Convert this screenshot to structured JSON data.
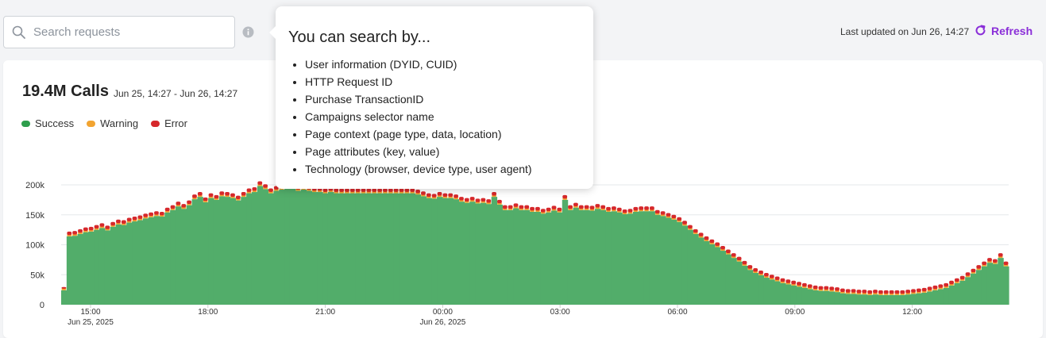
{
  "search": {
    "placeholder": "Search requests",
    "value": ""
  },
  "last_updated": "Last updated on Jun 26, 14:27",
  "refresh_label": "Refresh",
  "summary": {
    "calls": "19.4M Calls",
    "range": "Jun 25, 14:27 - Jun 26, 14:27"
  },
  "legend": [
    {
      "label": "Success",
      "color": "#2e9e4c"
    },
    {
      "label": "Warning",
      "color": "#f2a431"
    },
    {
      "label": "Error",
      "color": "#d6282b"
    }
  ],
  "popover": {
    "title": "You can search by...",
    "items": [
      "User information (DYID, CUID)",
      "HTTP Request ID",
      "Purchase TransactionID",
      "Campaigns selector name",
      "Page context (page type, data, location)",
      "Page attributes (key, value)",
      "Technology (browser, device type, user agent)"
    ]
  },
  "colors": {
    "accent": "#8a2ed8",
    "success_fill": "#52ad6a",
    "warning": "#f2a431",
    "error": "#d6282b"
  },
  "chart_data": {
    "type": "area",
    "y_ticks": [
      "0",
      "50k",
      "100k",
      "150k",
      "200k"
    ],
    "ylim": [
      0,
      200000
    ],
    "x_ticks": [
      {
        "time": "15:00",
        "date": "Jun 25, 2025"
      },
      {
        "time": "18:00",
        "date": ""
      },
      {
        "time": "21:00",
        "date": ""
      },
      {
        "time": "00:00",
        "date": "Jun 26, 2025"
      },
      {
        "time": "03:00",
        "date": ""
      },
      {
        "time": "06:00",
        "date": ""
      },
      {
        "time": "09:00",
        "date": ""
      },
      {
        "time": "12:00",
        "date": ""
      }
    ],
    "interval_minutes": 15,
    "series_names": [
      "Success",
      "Warning",
      "Error"
    ],
    "success": [
      24000,
      114000,
      115000,
      118000,
      121000,
      122000,
      125000,
      128000,
      124000,
      130000,
      134000,
      133000,
      137000,
      139000,
      141000,
      144000,
      146000,
      148000,
      147000,
      154000,
      158000,
      164000,
      160000,
      166000,
      176000,
      180000,
      171000,
      178000,
      175000,
      181000,
      180000,
      178000,
      174000,
      180000,
      186000,
      188000,
      198000,
      193000,
      186000,
      190000,
      192000,
      194000,
      194000,
      190000,
      192000,
      190000,
      188000,
      188000,
      186000,
      188000,
      186000,
      186000,
      186000,
      186000,
      186000,
      186000,
      186000,
      186000,
      186000,
      186000,
      186000,
      186000,
      186000,
      186000,
      186000,
      184000,
      181000,
      178000,
      177000,
      180000,
      178000,
      178000,
      176000,
      172000,
      170000,
      172000,
      169000,
      170000,
      168000,
      180000,
      167000,
      158000,
      158000,
      161000,
      158000,
      158000,
      155000,
      155000,
      152000,
      154000,
      157000,
      154000,
      175000,
      158000,
      162000,
      158000,
      158000,
      157000,
      160000,
      158000,
      155000,
      156000,
      154000,
      151000,
      152000,
      155000,
      156000,
      156000,
      156000,
      150000,
      148000,
      145000,
      142000,
      138000,
      132000,
      125000,
      118000,
      112000,
      106000,
      101000,
      96000,
      90000,
      84000,
      78000,
      72000,
      65000,
      58000,
      53000,
      49000,
      45000,
      42000,
      39000,
      36000,
      34000,
      32000,
      30000,
      28000,
      26000,
      24000,
      23000,
      23000,
      22000,
      21000,
      19000,
      18000,
      18000,
      17000,
      17000,
      16000,
      17000,
      16000,
      16000,
      16000,
      16000,
      16000,
      17000,
      18000,
      19000,
      20000,
      22000,
      24000,
      26000,
      28000,
      32000,
      36000,
      40000,
      46000,
      52000,
      58000,
      64000,
      70000,
      68000,
      78000,
      64000
    ],
    "warning": [
      4000,
      3500,
      3500,
      3500,
      3500,
      3500,
      3500,
      3500,
      3500,
      3500,
      3500,
      3500,
      3500,
      3500,
      3500,
      3500,
      3500,
      3500,
      3500,
      3500,
      3500,
      3500,
      3500,
      3500,
      3500,
      3500,
      3500,
      3500,
      3500,
      3500,
      3500,
      3500,
      3500,
      3500,
      3500,
      3500,
      3500,
      3500,
      3500,
      3500,
      3500,
      3500,
      3500,
      3500,
      3500,
      3500,
      3500,
      3500,
      3500,
      3500,
      3500,
      3500,
      3500,
      3500,
      3500,
      3500,
      3500,
      3500,
      3500,
      3500,
      3500,
      3500,
      3500,
      3500,
      3500,
      3500,
      3500,
      3500,
      3500,
      3500,
      3500,
      3500,
      3500,
      3500,
      3500,
      3500,
      3500,
      3500,
      3500,
      3500,
      3500,
      3500,
      3500,
      3500,
      3500,
      3500,
      3500,
      3500,
      3500,
      3500,
      3500,
      3500,
      3500,
      3500,
      3500,
      3500,
      3500,
      3500,
      3500,
      3500,
      3500,
      3500,
      3500,
      3500,
      3500,
      3500,
      3500,
      3500,
      3500,
      3500,
      3500,
      3500,
      3500,
      3500,
      3500,
      3500,
      3500,
      3500,
      3500,
      3500,
      3500,
      3500,
      3500,
      3500,
      3500,
      3500,
      3500,
      3500,
      3500,
      3500,
      3500,
      3500,
      3500,
      3500,
      3500,
      3500,
      3500,
      3500,
      3500,
      3500,
      3500,
      3500,
      3500,
      3500,
      3500,
      3500,
      3500,
      3500,
      3500,
      3500,
      3500,
      3500,
      3500,
      3500,
      3500,
      3500,
      3500,
      3500,
      3500,
      3500,
      3500,
      3500,
      3500,
      3500,
      3500,
      3500,
      3500,
      3500,
      3500,
      3500,
      3500,
      3500,
      3500,
      3500,
      3500,
      3500,
      3500
    ],
    "error": [
      1500,
      4500,
      4500,
      4500,
      4500,
      4500,
      4500,
      4500,
      4500,
      4500,
      4500,
      4500,
      4500,
      4500,
      4500,
      4500,
      4500,
      4500,
      4500,
      4500,
      4500,
      4500,
      4500,
      4500,
      4500,
      4500,
      4500,
      4500,
      4500,
      4500,
      4500,
      4500,
      4500,
      4500,
      4500,
      4500,
      4500,
      4500,
      4500,
      4500,
      4500,
      4500,
      4500,
      4500,
      4500,
      4500,
      4500,
      4500,
      4500,
      4500,
      4500,
      4500,
      4500,
      4500,
      4500,
      4500,
      4500,
      4500,
      4500,
      4500,
      4500,
      4500,
      4500,
      4500,
      4500,
      4500,
      4500,
      4500,
      4500,
      4500,
      4500,
      4500,
      4500,
      4500,
      4500,
      4500,
      4500,
      4500,
      4500,
      4500,
      4500,
      4500,
      4500,
      4500,
      4500,
      4500,
      4500,
      4500,
      4500,
      4500,
      4500,
      4500,
      4500,
      4500,
      4500,
      4500,
      4500,
      4500,
      4500,
      4500,
      4500,
      4500,
      4500,
      4500,
      4500,
      4500,
      4500,
      4500,
      4500,
      4500,
      4500,
      4500,
      4500,
      4500,
      4500,
      4500,
      4500,
      4500,
      4500,
      4500,
      4500,
      4500,
      4500,
      4500,
      4500,
      4500,
      4500,
      4500,
      4500,
      4500,
      4500,
      4500,
      4500,
      4500,
      4500,
      4500,
      4500,
      4500,
      4500,
      4500,
      4500,
      4500,
      4500,
      4500,
      4500,
      4500,
      4500,
      4500,
      4500,
      4500,
      4500,
      4500,
      4500,
      4500,
      4500,
      4500,
      4500,
      4500,
      4500,
      4500,
      4500,
      4500,
      4500,
      4500,
      4500,
      4500,
      4500,
      4500,
      4500,
      4500,
      4500,
      4500,
      4500,
      4500,
      4500,
      4500,
      4500
    ]
  }
}
